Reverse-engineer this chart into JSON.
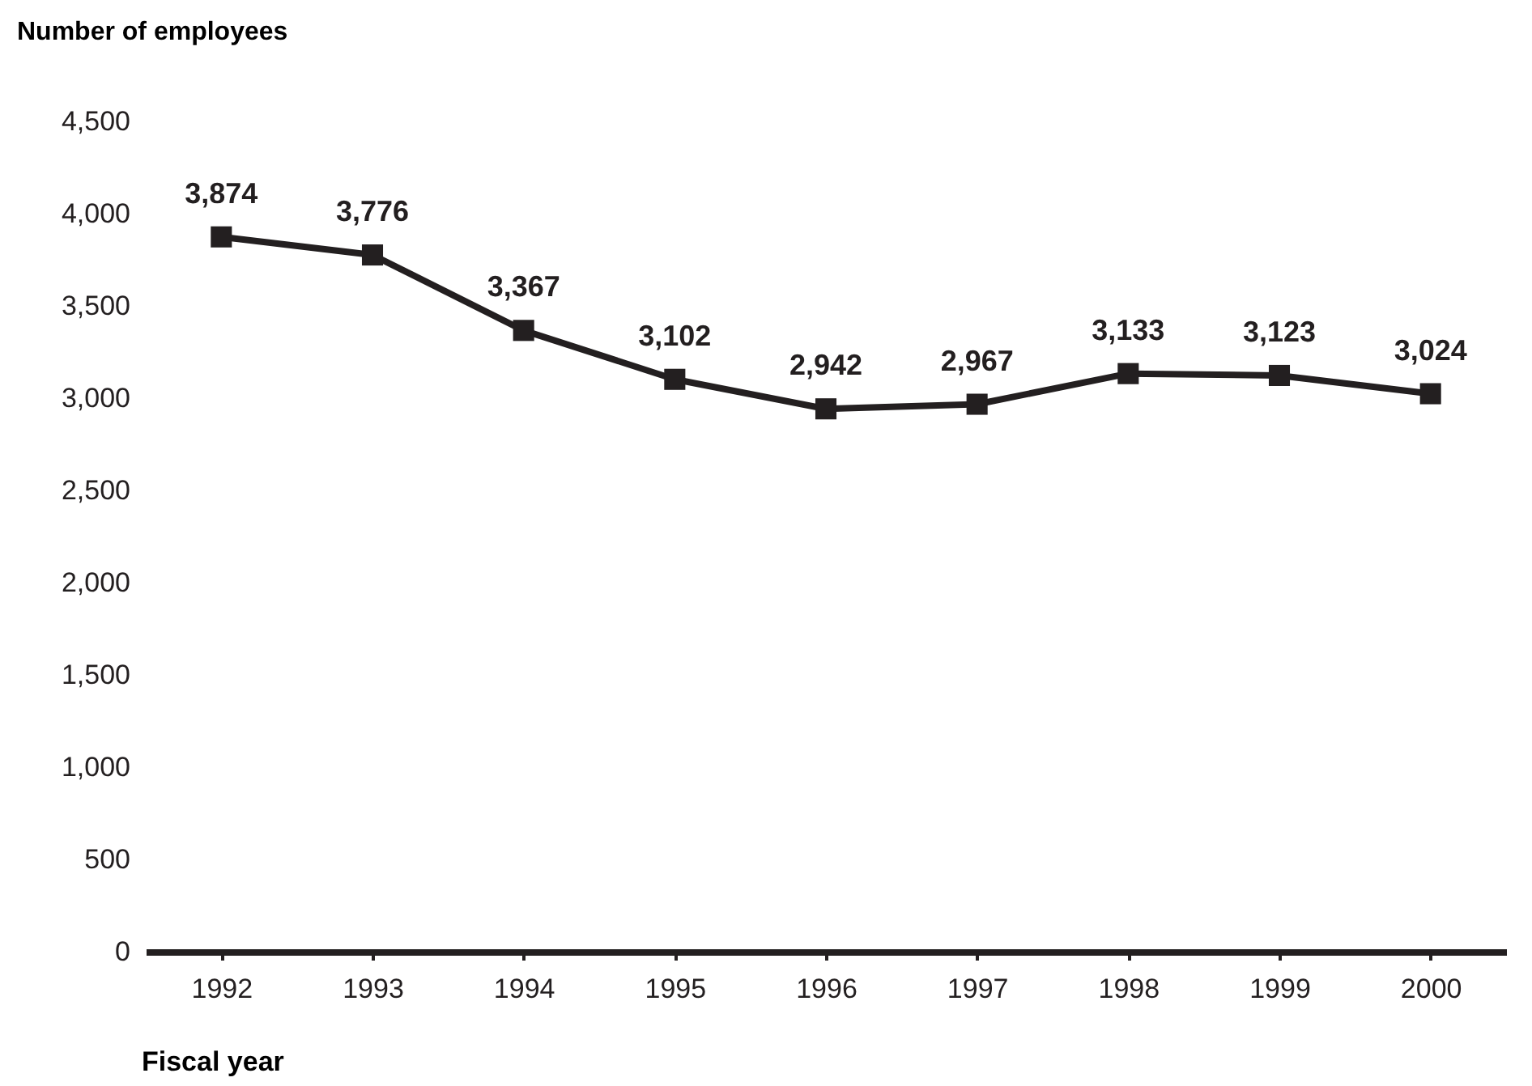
{
  "chart_data": {
    "type": "line",
    "xlabel": "Fiscal year",
    "ylabel": "Number of employees",
    "categories": [
      "1992",
      "1993",
      "1994",
      "1995",
      "1996",
      "1997",
      "1998",
      "1999",
      "2000"
    ],
    "series": [
      {
        "color": "#231f20",
        "values": [
          3874,
          3776,
          3367,
          3102,
          2942,
          2967,
          3133,
          3123,
          3024
        ],
        "value_labels": [
          "3,874",
          "3,776",
          "3,367",
          "3,102",
          "2,942",
          "2,967",
          "3,133",
          "3,123",
          "3,024"
        ]
      }
    ],
    "ylim": [
      0,
      4500
    ],
    "yticks": [
      0,
      500,
      {
        "value": 1000,
        "label": "1,000"
      },
      {
        "value": 1500,
        "label": "1,500"
      },
      {
        "value": 2000,
        "label": "2,000"
      },
      {
        "value": 2500,
        "label": "2,500"
      },
      {
        "value": 3000,
        "label": "3,000"
      },
      {
        "value": 3500,
        "label": "3,500"
      },
      {
        "value": 4000,
        "label": "4,000"
      },
      {
        "value": 4500,
        "label": "4,500"
      }
    ],
    "marker": "square",
    "line_style": "solid",
    "grid": false,
    "legend": false
  }
}
